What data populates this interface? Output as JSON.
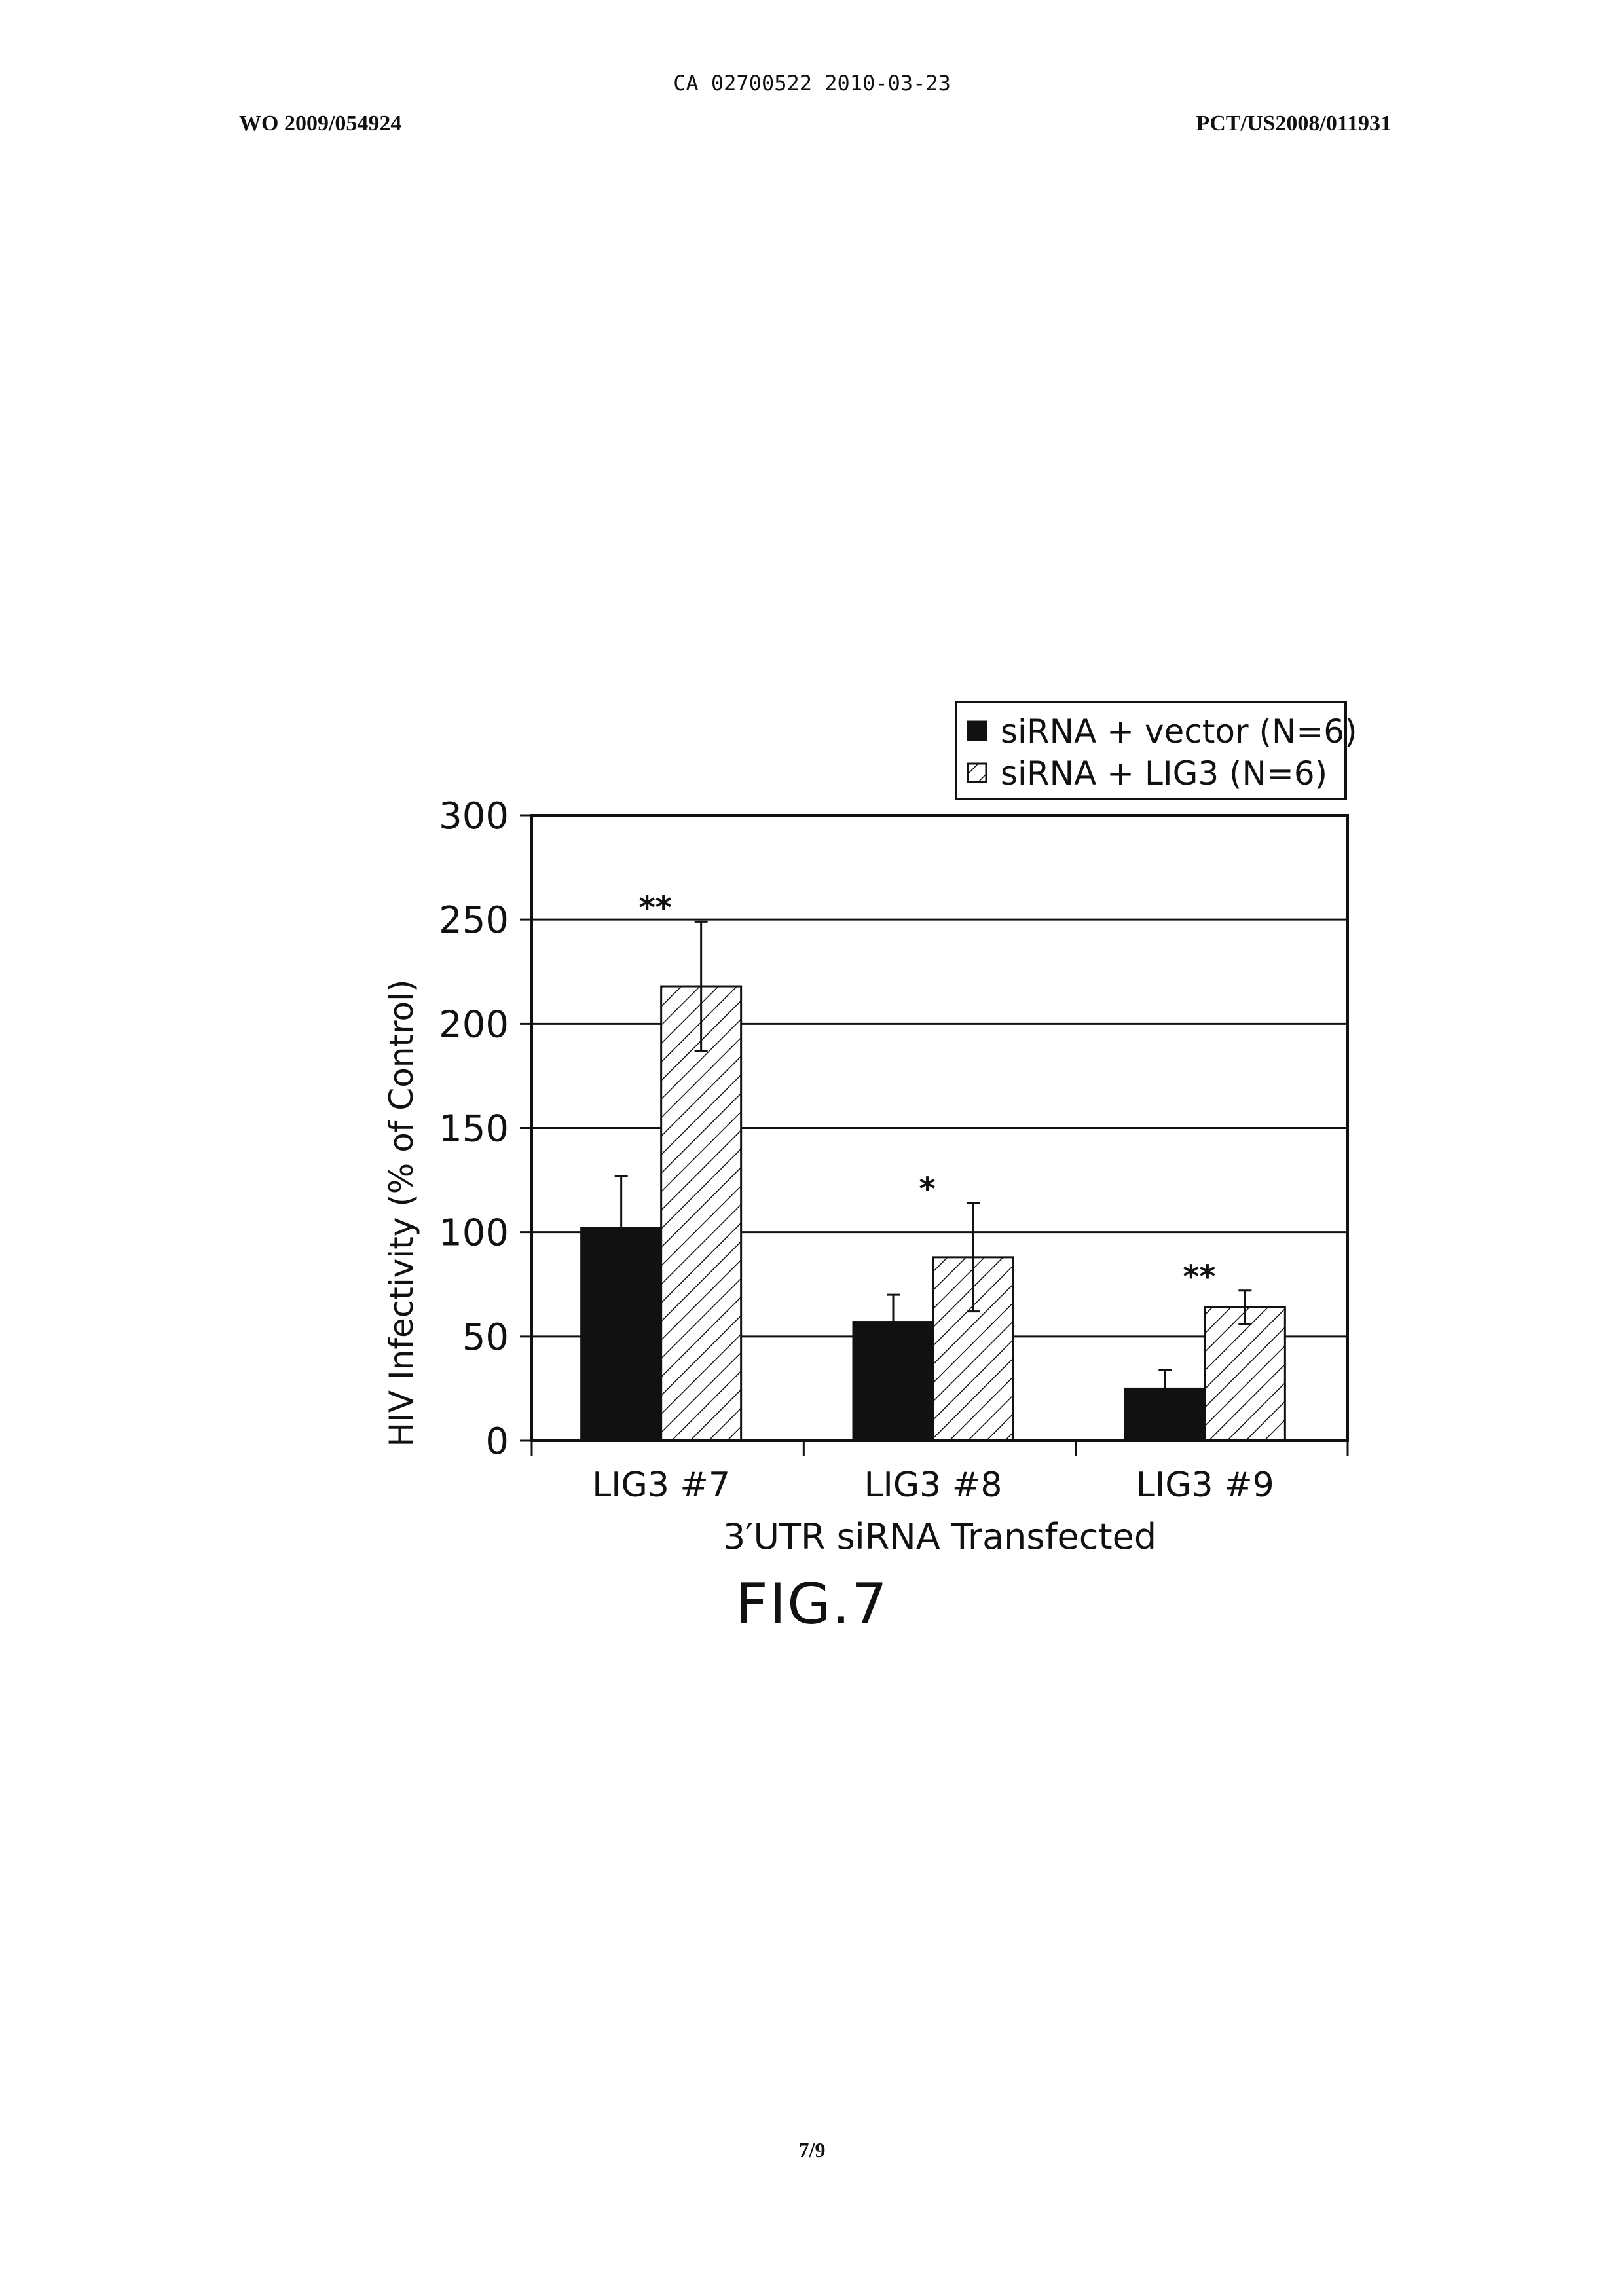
{
  "header": {
    "top_line": "CA 02700522 2010-03-23",
    "left": "WO 2009/054924",
    "right": "PCT/US2008/011931"
  },
  "figure_label": "FIG.7",
  "page_number": "7/9",
  "colors": {
    "series_vector": "#111111",
    "series_lig3": "#ffffff",
    "grid": "#111111"
  },
  "chart_data": {
    "type": "bar",
    "title": "",
    "xlabel": "3′UTR siRNA Transfected",
    "ylabel": "HIV Infectivity (% of Control)",
    "ylim": [
      0,
      300
    ],
    "yticks": [
      0,
      50,
      100,
      150,
      200,
      250,
      300
    ],
    "grid": true,
    "legend_position": "top-right",
    "categories": [
      "LIG3 #7",
      "LIG3 #8",
      "LIG3 #9"
    ],
    "series": [
      {
        "name": "siRNA + vector (N=6)",
        "fill": "solid",
        "values": [
          102,
          57,
          25
        ],
        "errors": [
          25,
          13,
          9
        ]
      },
      {
        "name": "siRNA + LIG3 (N=6)",
        "fill": "hatched",
        "values": [
          218,
          88,
          64
        ],
        "errors": [
          31,
          26,
          8
        ]
      }
    ],
    "annotations": [
      "**",
      "*",
      "**"
    ]
  }
}
